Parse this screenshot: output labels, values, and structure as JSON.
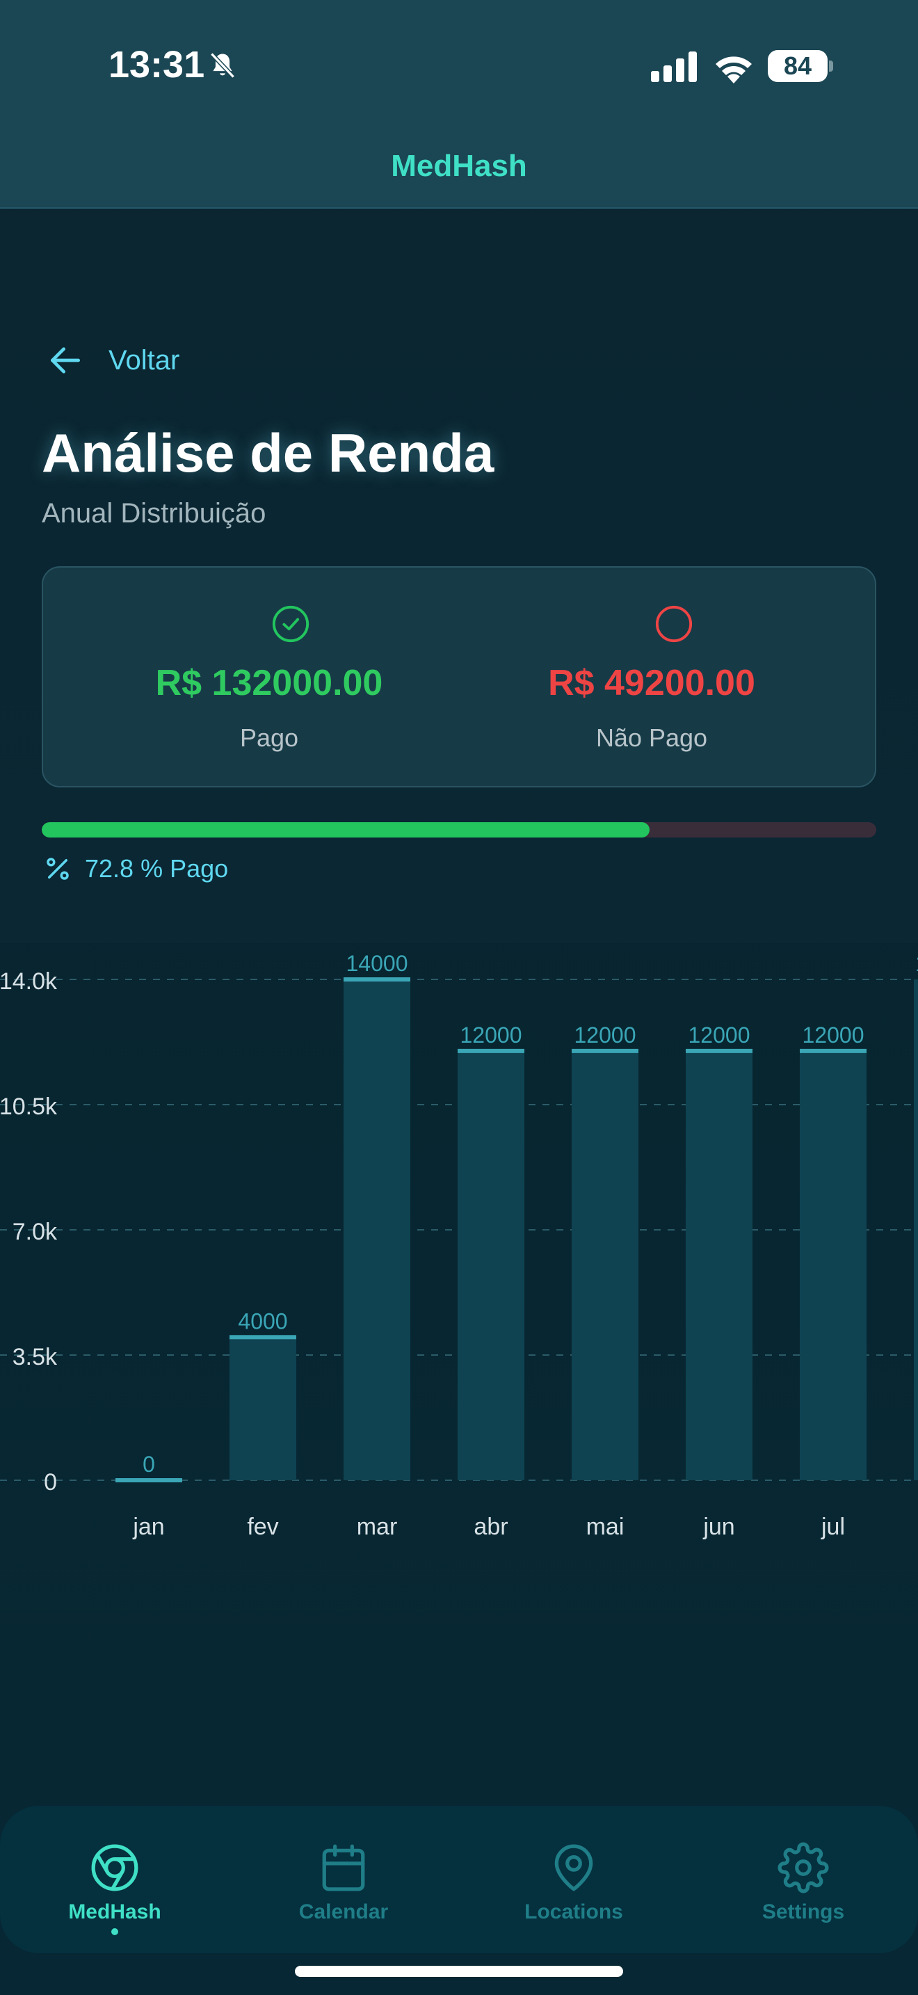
{
  "status_bar": {
    "time": "13:31",
    "battery": "84"
  },
  "header": {
    "title": "MedHash"
  },
  "back": {
    "label": "Voltar"
  },
  "page": {
    "title": "Análise de Renda",
    "subtitle": "Anual Distribuição"
  },
  "summary": {
    "paid": {
      "amount": "R$ 132000.00",
      "label": "Pago"
    },
    "unpaid": {
      "amount": "R$ 49200.00",
      "label": "Não Pago"
    }
  },
  "progress": {
    "fraction": 0.728,
    "label": "72.8 % Pago"
  },
  "colors": {
    "accent": "#3fe0c6",
    "paid": "#22c55e",
    "unpaid": "#ef4444",
    "bar": "#0f4352",
    "bar_line": "#3aa6b6"
  },
  "chart_data": {
    "type": "bar",
    "categories": [
      "jan",
      "fev",
      "mar",
      "abr",
      "mai",
      "jun",
      "jul"
    ],
    "values": [
      0,
      4000,
      14000,
      12000,
      12000,
      12000,
      12000
    ],
    "value_labels": [
      "0",
      "4000",
      "14000",
      "12000",
      "12000",
      "12000",
      "12000"
    ],
    "y_ticks": [
      0,
      3500,
      7000,
      10500,
      14000
    ],
    "y_tick_labels": [
      "0",
      "3.5k",
      "7.0k",
      "10.5k",
      "14.0k"
    ],
    "ylim": [
      0,
      14000
    ],
    "grid": true,
    "partial_next_label": "1"
  },
  "nav": {
    "items": [
      {
        "label": "MedHash",
        "icon": "chrome-aperture-icon",
        "active": true
      },
      {
        "label": "Calendar",
        "icon": "calendar-icon",
        "active": false
      },
      {
        "label": "Locations",
        "icon": "map-pin-icon",
        "active": false
      },
      {
        "label": "Settings",
        "icon": "gear-icon",
        "active": false
      }
    ]
  }
}
